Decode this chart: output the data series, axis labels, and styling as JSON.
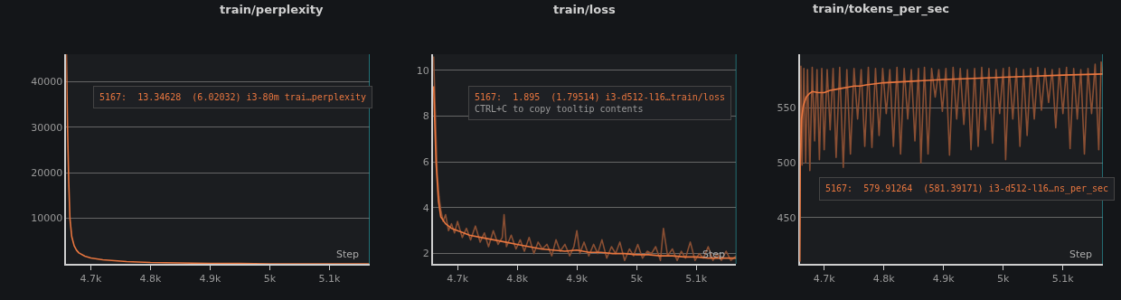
{
  "chart_data": [
    {
      "type": "line",
      "title": "train/perplexity",
      "xlabel": "Step",
      "annotations": [
        "5167:  13.34628  (6.02032) i3-80m trai…perplexity"
      ],
      "series": [
        {
          "color": "#e8763f",
          "x": [
            4659,
            4661,
            4663,
            4665,
            4668,
            4672,
            4676,
            4680,
            4690,
            4700,
            4720,
            4740,
            4760,
            4780,
            4800,
            4850,
            4900,
            4950,
            5000,
            5050,
            5100,
            5167
          ],
          "values": [
            46000,
            30000,
            18000,
            10000,
            6000,
            4000,
            3000,
            2400,
            1700,
            1300,
            900,
            700,
            500,
            400,
            300,
            200,
            100,
            100,
            0,
            0,
            0,
            0
          ]
        }
      ],
      "xlim": [
        4659,
        5167
      ],
      "xticks": [
        {
          "value": 4700,
          "label": "4.7k"
        },
        {
          "value": 4800,
          "label": "4.8k"
        },
        {
          "value": 4900,
          "label": "4.9k"
        },
        {
          "value": 5000,
          "label": "5k"
        },
        {
          "value": 5100,
          "label": "5.1k"
        }
      ],
      "ylim": [
        0,
        46000
      ],
      "yticks": [
        10000,
        20000,
        30000,
        40000
      ],
      "ref_lines": [
        {
          "axis": "x",
          "value": 5167,
          "color": "#2aa1a8"
        }
      ],
      "grid": "y",
      "line_style": "solid",
      "marker": "none"
    },
    {
      "type": "line",
      "title": "train/loss",
      "xlabel": "Step",
      "annotations": [
        "5167:  1.895  (1.79514) i3-d512-l16…train/loss",
        "CTRL+C to copy tooltip contents"
      ],
      "series": [
        {
          "color": "#8a4f33",
          "x": [
            4660,
            4663,
            4666,
            4669,
            4672,
            4676,
            4680,
            4685,
            4690,
            4695,
            4700,
            4708,
            4715,
            4722,
            4730,
            4738,
            4745,
            4752,
            4760,
            4768,
            4775,
            4778,
            4782,
            4790,
            4798,
            4805,
            4812,
            4820,
            4828,
            4835,
            4842,
            4850,
            4858,
            4865,
            4872,
            4880,
            4888,
            4895,
            4900,
            4905,
            4912,
            4920,
            4928,
            4935,
            4942,
            4950,
            4958,
            4965,
            4972,
            4980,
            4988,
            4995,
            5002,
            5010,
            5018,
            5025,
            5032,
            5040,
            5045,
            5052,
            5060,
            5068,
            5075,
            5082,
            5090,
            5098,
            5105,
            5112,
            5120,
            5128,
            5135,
            5142,
            5150,
            5158,
            5167
          ],
          "values": [
            10.6,
            8.0,
            5.5,
            4.5,
            3.9,
            3.4,
            3.7,
            3.0,
            3.3,
            2.9,
            3.4,
            2.7,
            3.1,
            2.6,
            3.2,
            2.5,
            2.9,
            2.3,
            3.0,
            2.4,
            2.7,
            3.7,
            2.3,
            2.8,
            2.2,
            2.6,
            2.1,
            2.7,
            2.0,
            2.5,
            2.2,
            2.4,
            1.9,
            2.6,
            2.1,
            2.4,
            1.9,
            2.3,
            3.0,
            2.0,
            2.5,
            1.9,
            2.4,
            2.0,
            2.6,
            1.8,
            2.3,
            2.0,
            2.5,
            1.7,
            2.2,
            1.9,
            2.4,
            1.8,
            2.1,
            2.0,
            2.3,
            1.7,
            3.1,
            1.9,
            2.2,
            1.7,
            2.1,
            1.8,
            2.5,
            1.7,
            2.0,
            1.8,
            2.3,
            1.7,
            2.0,
            1.7,
            2.1,
            1.7,
            1.9
          ]
        },
        {
          "color": "#e8763f",
          "x": [
            4660,
            4664,
            4668,
            4672,
            4680,
            4690,
            4700,
            4720,
            4740,
            4760,
            4780,
            4800,
            4820,
            4840,
            4860,
            4880,
            4900,
            4920,
            4940,
            4960,
            4980,
            5000,
            5020,
            5040,
            5060,
            5080,
            5100,
            5120,
            5140,
            5167
          ],
          "values": [
            9.3,
            6.0,
            4.3,
            3.6,
            3.3,
            3.1,
            3.0,
            2.8,
            2.7,
            2.6,
            2.5,
            2.4,
            2.3,
            2.2,
            2.15,
            2.1,
            2.15,
            2.05,
            2.05,
            2.0,
            2.0,
            1.95,
            1.95,
            1.9,
            1.9,
            1.85,
            1.85,
            1.8,
            1.8,
            1.8
          ]
        }
      ],
      "xlim": [
        4659,
        5167
      ],
      "xticks": [
        {
          "value": 4700,
          "label": "4.7k"
        },
        {
          "value": 4800,
          "label": "4.8k"
        },
        {
          "value": 4900,
          "label": "4.9k"
        },
        {
          "value": 5000,
          "label": "5k"
        },
        {
          "value": 5100,
          "label": "5.1k"
        }
      ],
      "ylim": [
        1.55,
        10.7
      ],
      "yticks": [
        2,
        4,
        6,
        8,
        10
      ],
      "ref_lines": [
        {
          "axis": "x",
          "value": 5167,
          "color": "#2aa1a8"
        }
      ],
      "grid": "y",
      "line_style": "solid",
      "marker": "none"
    },
    {
      "type": "line",
      "title": "train/tokens_per_sec",
      "xlabel": "Step",
      "annotations": [
        "5167:  579.91264  (581.39171) i3-d512-l16…ns_per_sec"
      ],
      "series": [
        {
          "color": "#8a4f33",
          "x": [
            4659,
            4661,
            4663,
            4666,
            4669,
            4672,
            4676,
            4680,
            4684,
            4688,
            4692,
            4696,
            4700,
            4705,
            4710,
            4715,
            4720,
            4726,
            4732,
            4738,
            4744,
            4750,
            4756,
            4762,
            4768,
            4774,
            4780,
            4786,
            4792,
            4798,
            4804,
            4810,
            4816,
            4822,
            4828,
            4834,
            4840,
            4846,
            4852,
            4858,
            4862,
            4868,
            4874,
            4880,
            4886,
            4892,
            4898,
            4904,
            4910,
            4916,
            4922,
            4928,
            4934,
            4940,
            4946,
            4952,
            4958,
            4964,
            4970,
            4976,
            4982,
            4988,
            4994,
            5000,
            5004,
            5010,
            5016,
            5022,
            5028,
            5034,
            5040,
            5046,
            5052,
            5058,
            5064,
            5070,
            5076,
            5082,
            5088,
            5094,
            5100,
            5106,
            5112,
            5118,
            5124,
            5130,
            5136,
            5142,
            5148,
            5154,
            5160,
            5164,
            5167
          ],
          "values": [
            410,
            588,
            498,
            586,
            500,
            585,
            493,
            587,
            520,
            585,
            503,
            586,
            512,
            585,
            530,
            586,
            505,
            587,
            496,
            585,
            508,
            586,
            540,
            585,
            515,
            587,
            514,
            586,
            525,
            586,
            545,
            585,
            515,
            587,
            508,
            586,
            540,
            585,
            520,
            586,
            500,
            587,
            508,
            586,
            560,
            585,
            547,
            586,
            507,
            587,
            540,
            586,
            535,
            585,
            512,
            586,
            515,
            587,
            530,
            586,
            518,
            585,
            545,
            586,
            503,
            587,
            540,
            586,
            515,
            585,
            525,
            586,
            540,
            587,
            548,
            586,
            555,
            585,
            532,
            586,
            545,
            587,
            513,
            586,
            540,
            585,
            508,
            586,
            545,
            590,
            512,
            592,
            580
          ]
        },
        {
          "color": "#e8763f",
          "x": [
            4659,
            4660,
            4662,
            4665,
            4670,
            4675,
            4680,
            4690,
            4700,
            4710,
            4720,
            4730,
            4740,
            4750,
            4760,
            4770,
            4800,
            4900,
            5000,
            5100,
            5167
          ],
          "values": [
            410,
            500,
            540,
            552,
            560,
            563,
            565,
            564,
            564,
            566,
            567,
            568,
            569,
            570,
            570,
            571,
            573,
            576,
            578,
            580,
            581
          ]
        }
      ],
      "xlim": [
        4659,
        5167
      ],
      "xticks": [
        {
          "value": 4700,
          "label": "4.7k"
        },
        {
          "value": 4800,
          "label": "4.8k"
        },
        {
          "value": 4900,
          "label": "4.9k"
        },
        {
          "value": 5000,
          "label": "5k"
        },
        {
          "value": 5100,
          "label": "5.1k"
        }
      ],
      "ylim": [
        408,
        599
      ],
      "yticks": [
        450,
        500,
        550
      ],
      "ref_lines": [
        {
          "axis": "x",
          "value": 5167,
          "color": "#2aa1a8"
        }
      ],
      "grid": "y",
      "line_style": "solid",
      "marker": "none"
    }
  ]
}
